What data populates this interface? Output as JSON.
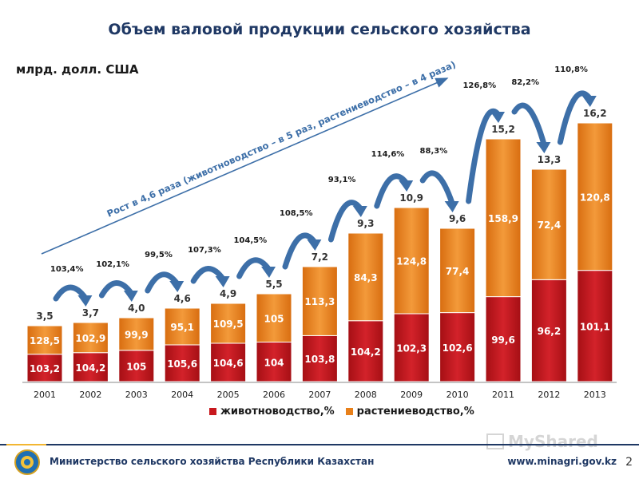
{
  "title": "Объем валовой продукции сельского хозяйства",
  "unit_label": "млрд. долл. США",
  "growth_note": "Рост в 4,6 раза (животноводство – в 5 раз, растениеводство – в 4 раза)",
  "colors": {
    "livestock": "#c8181e",
    "crops": "#e8801a",
    "title": "#1f3864",
    "arrow": "#3d6fa8"
  },
  "legend": {
    "livestock": "животноводство,%",
    "crops": "растениеводство,%"
  },
  "footer": {
    "ministry": "Министерство сельского хозяйства Республики Казахстан",
    "site": "www.minagri.gov.kz",
    "page": "2"
  },
  "chart_data": {
    "type": "bar",
    "stacked": true,
    "categories": [
      "2001",
      "2002",
      "2003",
      "2004",
      "2005",
      "2006",
      "2007",
      "2008",
      "2009",
      "2010",
      "2011",
      "2012",
      "2013"
    ],
    "totals": [
      3.5,
      3.7,
      4.0,
      4.6,
      4.9,
      5.5,
      7.2,
      9.3,
      10.9,
      9.6,
      15.2,
      13.3,
      16.2
    ],
    "total_labels": [
      "3,5",
      "3,7",
      "4,0",
      "4,6",
      "4,9",
      "5,5",
      "7,2",
      "9,3",
      "10,9",
      "9,6",
      "15,2",
      "13,3",
      "16,2"
    ],
    "livestock_share": [
      0.49,
      0.49,
      0.49,
      0.5,
      0.49,
      0.45,
      0.4,
      0.41,
      0.39,
      0.45,
      0.35,
      0.48,
      0.43
    ],
    "series": [
      {
        "name": "животноводство,%",
        "labels": [
          "103,2",
          "104,2",
          "105",
          "105,6",
          "104,6",
          "104",
          "103,8",
          "104,2",
          "102,3",
          "102,6",
          "99,6",
          "96,2",
          "101,1"
        ]
      },
      {
        "name": "растениеводство,%",
        "labels": [
          "128,5",
          "102,9",
          "99,9",
          "95,1",
          "109,5",
          "105",
          "113,3",
          "84,3",
          "124,8",
          "77,4",
          "158,9",
          "72,4",
          "120,8"
        ]
      }
    ],
    "growth_labels": [
      "103,4%",
      "102,1%",
      "99,5%",
      "107,3%",
      "104,5%",
      "108,5%",
      "93,1%",
      "114,6%",
      "88,3%",
      "126,8%",
      "82,2%",
      "110,8%"
    ],
    "ylim": [
      0,
      18
    ],
    "legend_position": "bottom"
  }
}
